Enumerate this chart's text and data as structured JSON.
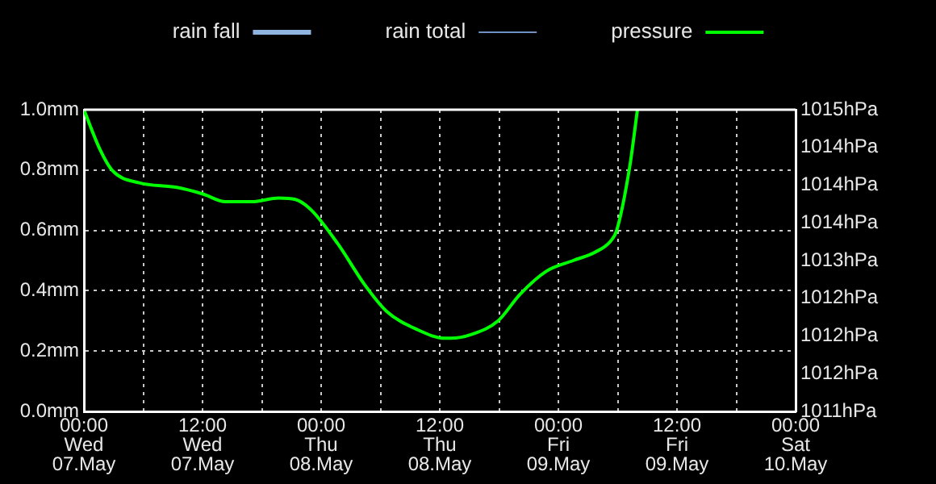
{
  "chart_data": {
    "type": "line",
    "x": [
      "--05-07T00:00",
      "--05-07T01:36",
      "--05-07T02:54",
      "--05-07T05:36",
      "--05-07T09:24",
      "--05-07T12:06",
      "--05-07T14:18",
      "--05-07T17:00",
      "--05-07T19:42",
      "--05-07T21:24",
      "--05-07T23:00",
      "--05-08T01:42",
      "--05-08T04:24",
      "--05-08T06:36",
      "--05-08T09:48",
      "--05-08T12:30",
      "--05-08T13:06",
      "--05-08T15:12",
      "--05-08T17:54",
      "--05-08T20:06",
      "--05-08T22:48",
      "--05-09T01:30",
      "--05-09T03:42",
      "--05-09T05:18",
      "--05-09T05:54",
      "--05-09T07:12",
      "--05-09T08:00"
    ],
    "series": [
      {
        "name": "rain fall",
        "color": "#8fb4e0",
        "values": [
          null,
          null,
          null,
          null,
          null,
          null,
          null,
          null,
          null,
          null,
          null,
          null,
          null,
          null,
          null,
          null,
          null,
          null,
          null,
          null,
          null,
          null,
          null,
          null,
          null,
          null,
          null
        ]
      },
      {
        "name": "rain total",
        "color": "#6f90c0",
        "values": [
          null,
          null,
          null,
          null,
          null,
          null,
          null,
          null,
          null,
          null,
          null,
          null,
          null,
          null,
          null,
          null,
          null,
          null,
          null,
          null,
          null,
          null,
          null,
          null,
          null,
          null,
          null
        ]
      },
      {
        "name": "pressure",
        "color": "#00ff00",
        "axis": "y2",
        "values": [
          1015.0,
          1014.48,
          1014.19,
          1014.03,
          1013.97,
          1013.88,
          1013.78,
          1013.78,
          1013.83,
          1013.81,
          1013.67,
          1013.22,
          1012.68,
          1012.33,
          1012.08,
          1011.97,
          1011.97,
          1012.02,
          1012.2,
          1012.55,
          1012.86,
          1013.0,
          1013.11,
          1013.26,
          1013.4,
          1014.23,
          1015.0
        ]
      }
    ],
    "xlim": [
      "--05-07T00:00",
      "--05-10T00:00"
    ],
    "xticks": [
      {
        "value": "--05-07T00:00",
        "label": "00:00\nWed\n07.May"
      },
      {
        "value": "--05-07T06:00",
        "label": null
      },
      {
        "value": "--05-07T12:00",
        "label": "12:00\nWed\n07.May"
      },
      {
        "value": "--05-07T18:00",
        "label": null
      },
      {
        "value": "--05-08T00:00",
        "label": "00:00\nThu\n08.May"
      },
      {
        "value": "--05-08T06:00",
        "label": null
      },
      {
        "value": "--05-08T12:00",
        "label": "12:00\nThu\n08.May"
      },
      {
        "value": "--05-08T18:00",
        "label": null
      },
      {
        "value": "--05-09T00:00",
        "label": "00:00\nFri\n09.May"
      },
      {
        "value": "--05-09T06:00",
        "label": null
      },
      {
        "value": "--05-09T12:00",
        "label": "12:00\nFri\n09.May"
      },
      {
        "value": "--05-09T18:00",
        "label": null
      },
      {
        "value": "--05-10T00:00",
        "label": "00:00\nSat\n10.May"
      }
    ],
    "ylim": [
      0,
      1
    ],
    "yticks": [
      {
        "value": 0,
        "label": "0.0mm"
      },
      {
        "value": 0.2,
        "label": "0.2mm"
      },
      {
        "value": 0.4,
        "label": "0.4mm"
      },
      {
        "value": 0.6,
        "label": "0.6mm"
      },
      {
        "value": 0.8,
        "label": "0.8mm"
      },
      {
        "value": 1,
        "label": "1.0mm"
      }
    ],
    "y2lim": [
      1011,
      1015
    ],
    "y2ticks": [
      {
        "value": 1011,
        "label": "1011hPa"
      },
      {
        "value": 1011.5,
        "label": "1012hPa"
      },
      {
        "value": 1012,
        "label": "1012hPa"
      },
      {
        "value": 1012.5,
        "label": "1012hPa"
      },
      {
        "value": 1013,
        "label": "1013hPa"
      },
      {
        "value": 1013.5,
        "label": "1014hPa"
      },
      {
        "value": 1014,
        "label": "1014hPa"
      },
      {
        "value": 1014.5,
        "label": "1014hPa"
      },
      {
        "value": 1015,
        "label": "1015hPa"
      }
    ],
    "grid": true,
    "legend": "top",
    "marker": "none",
    "line_style": "solid"
  }
}
